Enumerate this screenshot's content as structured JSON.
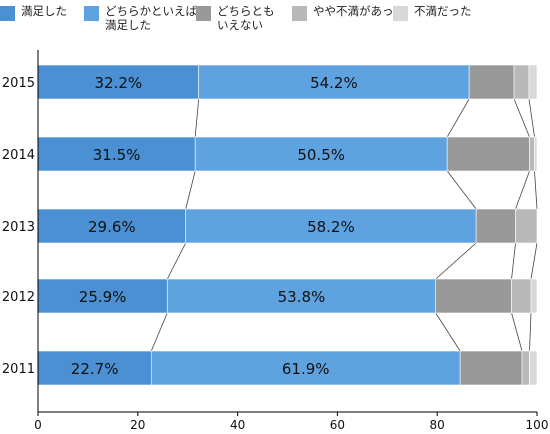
{
  "chart_data": {
    "type": "bar",
    "orientation": "horizontal",
    "stacked": true,
    "categories": [
      "2015",
      "2014",
      "2013",
      "2012",
      "2011"
    ],
    "series": [
      {
        "name": "満足した",
        "color": "#4a90d2",
        "values": [
          32.2,
          31.5,
          29.6,
          25.9,
          22.7
        ]
      },
      {
        "name": "どちらかといえば\n満足した",
        "color": "#5ea2e0",
        "values": [
          54.2,
          50.5,
          58.2,
          53.8,
          61.9
        ]
      },
      {
        "name": "どちらとも\nいえない",
        "color": "#999999",
        "values": [
          9.0,
          16.5,
          7.9,
          15.2,
          12.4
        ]
      },
      {
        "name": "やや不満があった",
        "color": "#b9b9b9",
        "values": [
          3.0,
          1.0,
          4.3,
          3.9,
          1.5
        ]
      },
      {
        "name": "不満だった",
        "color": "#d8d8d8",
        "values": [
          1.6,
          0.5,
          0.0,
          1.2,
          1.5
        ]
      }
    ],
    "data_labels": [
      [
        "32.2%",
        "54.2%"
      ],
      [
        "31.5%",
        "50.5%"
      ],
      [
        "29.6%",
        "58.2%"
      ],
      [
        "25.9%",
        "53.8%"
      ],
      [
        "22.7%",
        "61.9%"
      ]
    ],
    "xlim": [
      0,
      100
    ],
    "xticks": [
      "0",
      "20",
      "40",
      "60",
      "80",
      "100"
    ],
    "connector_lines": true,
    "legend_position": "top",
    "grid": false
  }
}
